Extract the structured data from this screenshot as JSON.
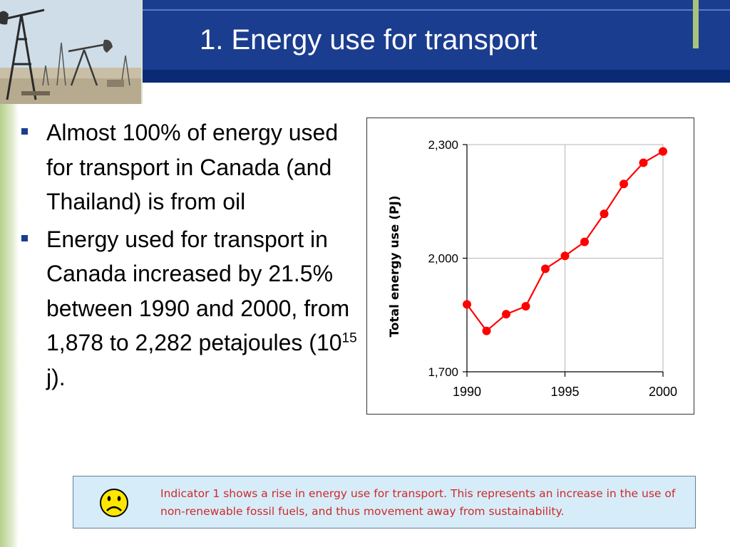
{
  "slide": {
    "title": "1. Energy use for transport"
  },
  "bullets": [
    {
      "text": "Almost 100% of energy used for transport in Canada (and Thailand) is from oil"
    },
    {
      "text_before": "Energy used for transport in Canada increased by 21.5% between 1990 and 2000, from 1,878 to 2,282 petajoules (10",
      "superscript": "15",
      "text_after": " j)."
    }
  ],
  "note": {
    "text": "Indicator 1 shows a rise in energy use for transport. This represents an increase in the use of non-renewable fossil fuels, and thus movement away from sustainability.",
    "icon": "sad-face-icon"
  },
  "colors": {
    "header": "#1b3d8f",
    "accent": "#a9c47a",
    "series": "#ff0000",
    "note_text": "#cc2a2a",
    "note_bg": "#d7ecf9"
  },
  "chart_data": {
    "type": "line",
    "title": "",
    "xlabel": "",
    "ylabel": "Total energy use (PJ)",
    "x": [
      1990,
      1991,
      1992,
      1993,
      1994,
      1995,
      1996,
      1997,
      1998,
      1999,
      2000
    ],
    "series": [
      {
        "values": [
          1878,
          1808,
          1852,
          1873,
          1972,
          2006,
          2043,
          2117,
          2196,
          2252,
          2282
        ]
      }
    ],
    "xlim": [
      1990,
      2000
    ],
    "ylim": [
      1700,
      2300
    ],
    "x_ticks": [
      1990,
      1995,
      2000
    ],
    "x_tick_labels": [
      "1990",
      "1995",
      "2000"
    ],
    "y_ticks": [
      1700,
      2000,
      2300
    ],
    "y_tick_labels": [
      "1,700",
      "2,000",
      "2,300"
    ],
    "grid": true,
    "legend": "none"
  }
}
